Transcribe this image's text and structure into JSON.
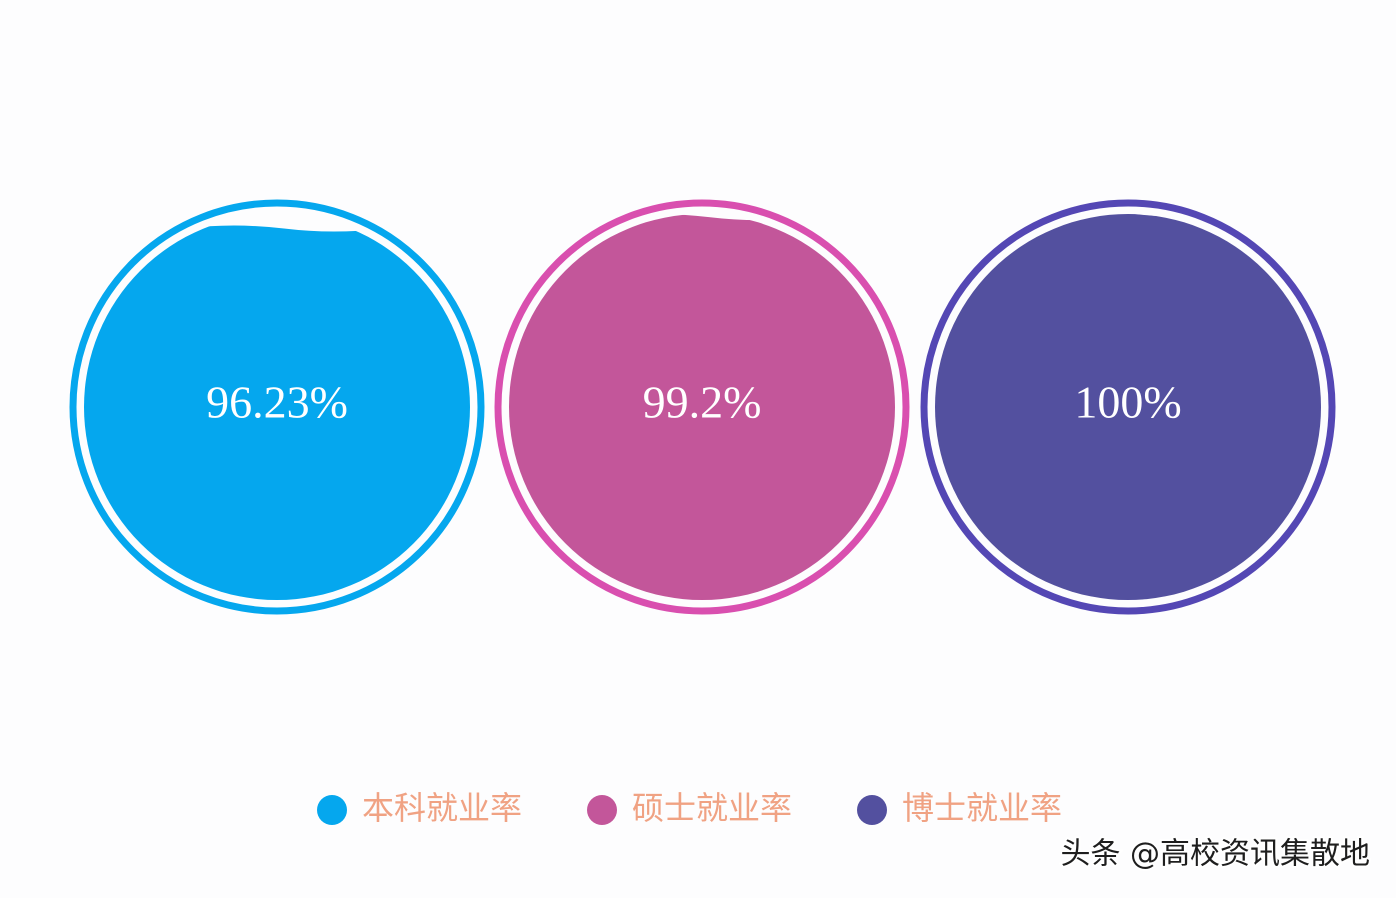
{
  "chart_data": {
    "type": "liquid",
    "series": [
      {
        "name": "本科就业率",
        "color": "#05a7ee",
        "values": [
          96.23
        ],
        "value_labels": [
          "96.23%"
        ]
      },
      {
        "name": "硕士就业率",
        "color": "#c3569a",
        "ring_color": "#d94faf",
        "values": [
          99.2
        ],
        "value_labels": [
          "99.2%"
        ]
      },
      {
        "name": "博士就业率",
        "color": "#53509f",
        "ring_color": "#5447b4",
        "values": [
          100
        ],
        "value_labels": [
          "100%"
        ]
      }
    ],
    "ylim": [
      0,
      100
    ]
  },
  "watermark": "头条 @高校资讯集散地"
}
